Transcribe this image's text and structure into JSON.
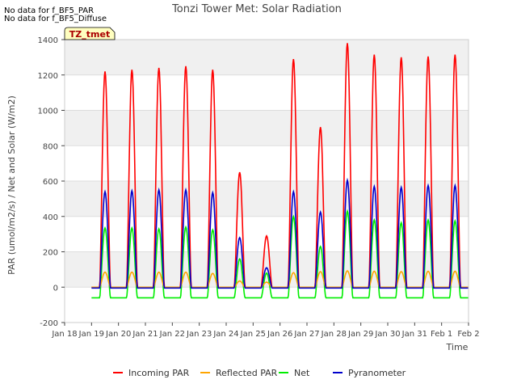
{
  "notes": [
    "No data for f_BF5_PAR",
    "No data for f_BF5_Diffuse"
  ],
  "chart_data": {
    "type": "line",
    "title": "Tonzi Tower Met: Solar Radiation",
    "xlabel": "Time",
    "ylabel": "PAR (umol/m2/s) / Net and Solar (W/m2)",
    "ylim": [
      -200,
      1400
    ],
    "yticks": [
      -200,
      0,
      200,
      400,
      600,
      800,
      1000,
      1200,
      1400
    ],
    "xlim": [
      0,
      15
    ],
    "xticks": [
      "Jan 18",
      "Jan 19",
      "Jan 20",
      "Jan 21",
      "Jan 22",
      "Jan 23",
      "Jan 24",
      "Jan 25",
      "Jan 26",
      "Jan 27",
      "Jan 28",
      "Jan 29",
      "Jan 30",
      "Jan 31",
      "Feb 1",
      "Feb 2"
    ],
    "annotation": "TZ_tmet",
    "legend_position": "bottom",
    "series": [
      {
        "name": "Incoming PAR",
        "color": "#ff0000",
        "daily_peak": [
          1220,
          1230,
          1240,
          1250,
          1230,
          650,
          290,
          1290,
          905,
          1380,
          1315,
          1300,
          1305,
          1315
        ],
        "night_value": 0
      },
      {
        "name": "Reflected PAR",
        "color": "#ffa500",
        "daily_peak": [
          85,
          85,
          85,
          85,
          78,
          35,
          28,
          82,
          88,
          92,
          90,
          88,
          90,
          90
        ],
        "night_value": 0
      },
      {
        "name": "Net",
        "color": "#00ee00",
        "daily_peak": [
          335,
          335,
          330,
          340,
          325,
          160,
          80,
          400,
          230,
          430,
          380,
          365,
          380,
          375
        ],
        "night_value": -60
      },
      {
        "name": "Pyranometer",
        "color": "#0000cc",
        "daily_peak": [
          540,
          545,
          550,
          550,
          535,
          280,
          110,
          540,
          425,
          605,
          570,
          565,
          575,
          575
        ],
        "night_value": -5
      }
    ]
  }
}
